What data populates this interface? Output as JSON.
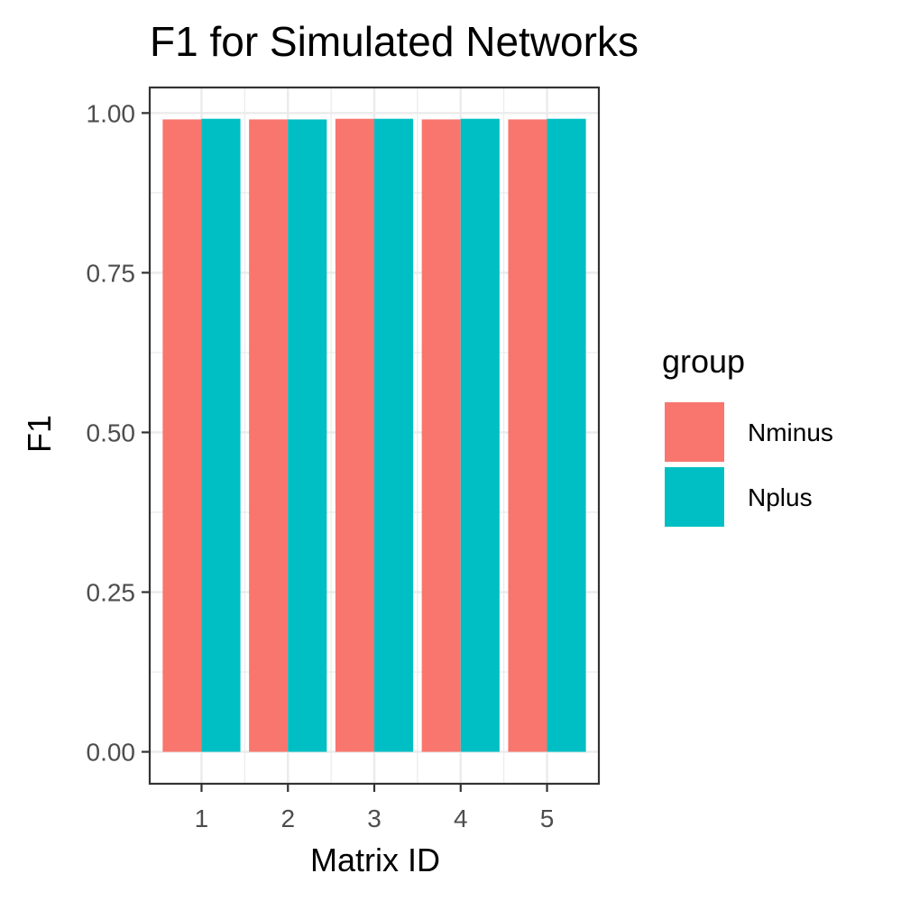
{
  "chart_data": {
    "type": "bar",
    "title": "F1 for Simulated Networks",
    "xlabel": "Matrix ID",
    "ylabel": "F1",
    "categories": [
      "1",
      "2",
      "3",
      "4",
      "5"
    ],
    "series": [
      {
        "name": "Nminus",
        "color": "#F8766D",
        "values": [
          0.99,
          0.99,
          0.991,
          0.99,
          0.99
        ]
      },
      {
        "name": "Nplus",
        "color": "#00BFC4",
        "values": [
          0.991,
          0.99,
          0.991,
          0.991,
          0.991
        ]
      }
    ],
    "ylim": [
      -0.05,
      1.04
    ],
    "y_ticks": [
      "0.00",
      "0.25",
      "0.50",
      "0.75",
      "1.00"
    ],
    "legend": {
      "title": "group",
      "position": "right"
    },
    "grid": true
  }
}
